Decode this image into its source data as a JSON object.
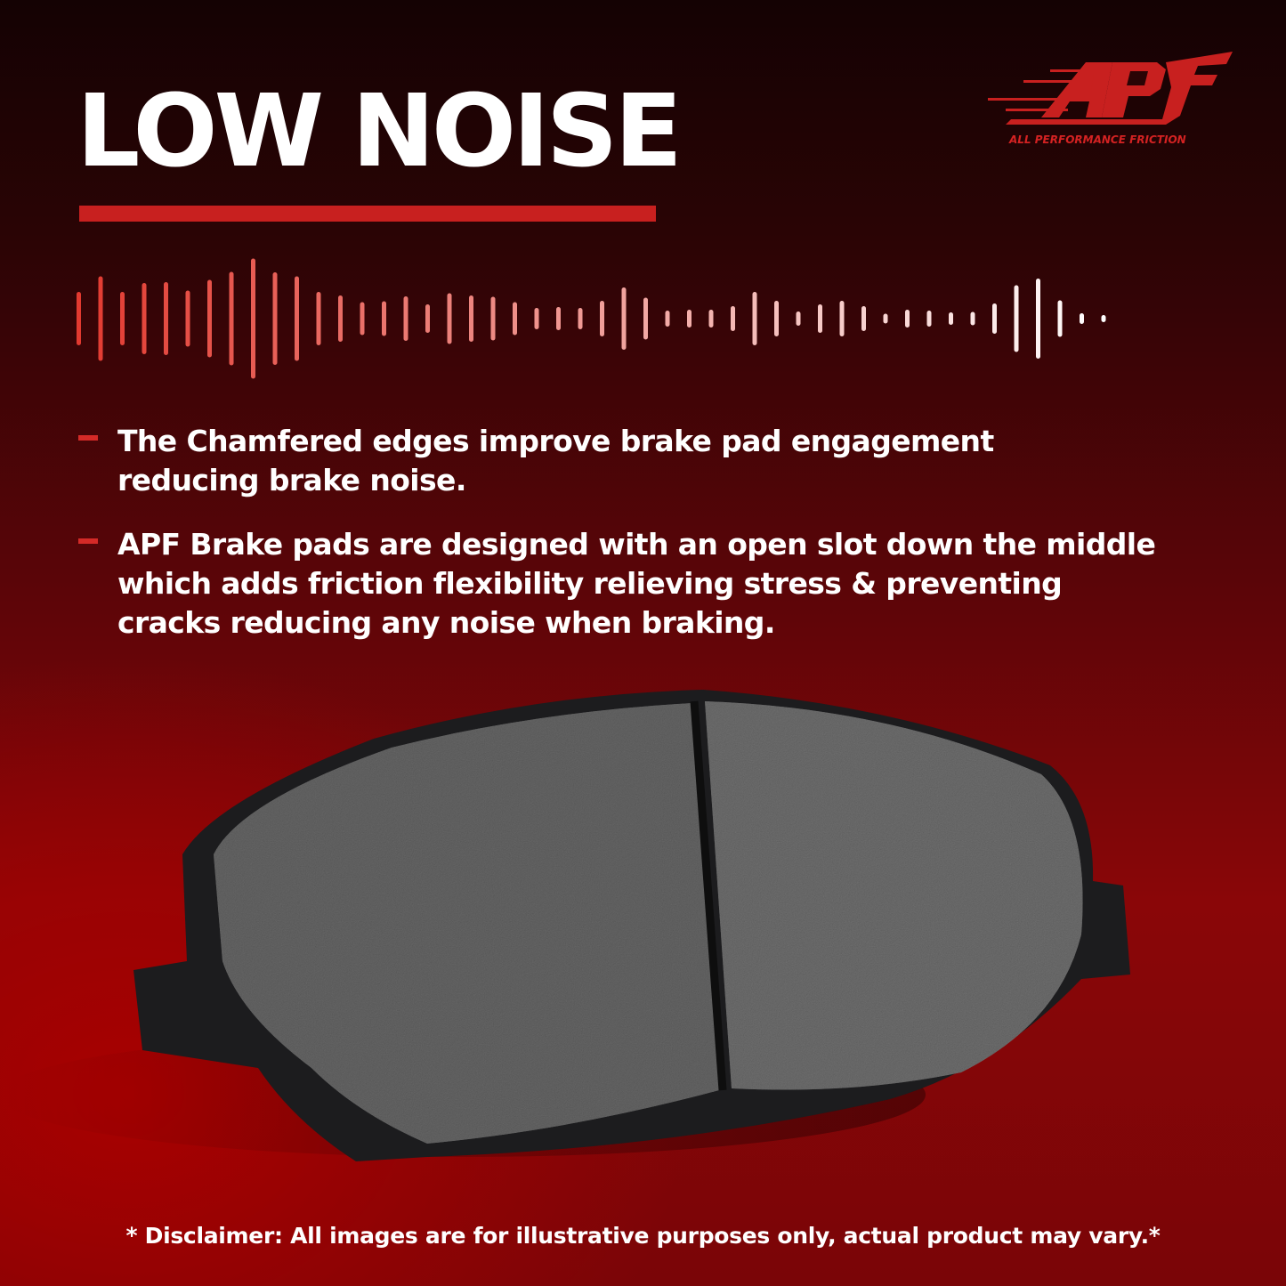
{
  "header": {
    "title": "LOW NOISE"
  },
  "logo": {
    "mark": "APF",
    "tagline": "ALL PERFORMANCE FRICTION",
    "color": "#d42222"
  },
  "waveform": {
    "icon": "sound-wave-icon",
    "start_color": "#e23a30",
    "end_color": "#ffffff"
  },
  "features": [
    {
      "text": "The Chamfered edges improve brake pad engagement\nreducing brake noise."
    },
    {
      "text": "APF Brake pads are designed with an open slot down the middle\nwhich adds friction flexibility relieving stress & preventing\n cracks reducing any noise when braking."
    }
  ],
  "product": {
    "image": "brake-pad"
  },
  "disclaimer": "* Disclaimer: All images are for illustrative purposes only, actual product may vary.*",
  "colors": {
    "accent": "#c8201f",
    "background_dark": "#140203",
    "background_red": "#8a0608"
  }
}
